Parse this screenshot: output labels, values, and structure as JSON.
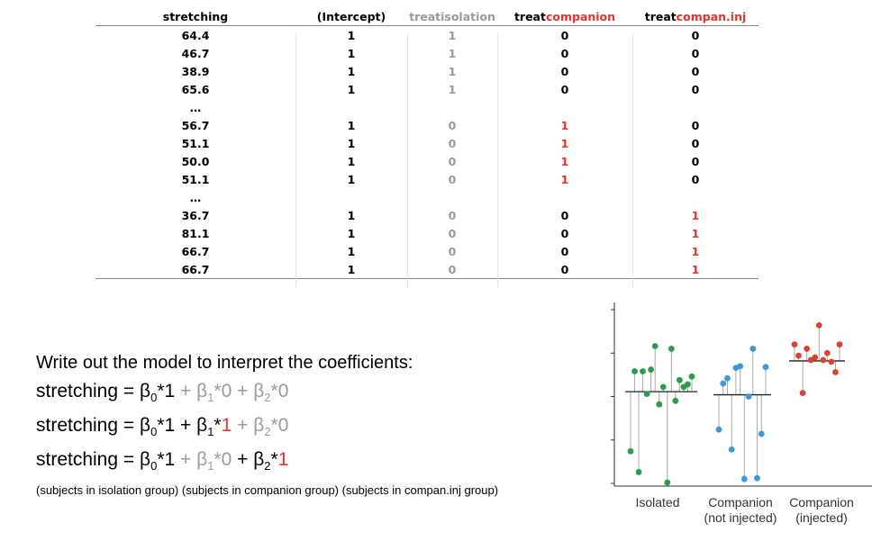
{
  "table": {
    "headers": [
      {
        "parts": [
          {
            "text": "stretching",
            "color": "black"
          }
        ]
      },
      {
        "parts": [
          {
            "text": "(Intercept)",
            "color": "black"
          }
        ]
      },
      {
        "parts": [
          {
            "text": "treatisolation",
            "color": "gray"
          }
        ]
      },
      {
        "parts": [
          {
            "text": "treat",
            "color": "black"
          },
          {
            "text": "companion",
            "color": "red"
          }
        ]
      },
      {
        "parts": [
          {
            "text": "treat",
            "color": "black"
          },
          {
            "text": "compan.inj",
            "color": "red"
          }
        ]
      }
    ],
    "rows": [
      [
        "64.4",
        "1",
        "1",
        "0",
        "0"
      ],
      [
        "46.7",
        "1",
        "1",
        "0",
        "0"
      ],
      [
        "38.9",
        "1",
        "1",
        "0",
        "0"
      ],
      [
        "65.6",
        "1",
        "1",
        "0",
        "0"
      ],
      [
        "…",
        "",
        "",
        "",
        ""
      ],
      [
        "56.7",
        "1",
        "0",
        "1",
        "0"
      ],
      [
        "51.1",
        "1",
        "0",
        "1",
        "0"
      ],
      [
        "50.0",
        "1",
        "0",
        "1",
        "0"
      ],
      [
        "51.1",
        "1",
        "0",
        "1",
        "0"
      ],
      [
        "…",
        "",
        "",
        "",
        ""
      ],
      [
        "36.7",
        "1",
        "0",
        "0",
        "1"
      ],
      [
        "81.1",
        "1",
        "0",
        "0",
        "1"
      ],
      [
        "66.7",
        "1",
        "0",
        "0",
        "1"
      ],
      [
        "66.7",
        "1",
        "0",
        "0",
        "1"
      ]
    ]
  },
  "model": {
    "intro": "Write out the model to interpret the coefficients:",
    "equations": [
      [
        {
          "text": "stretching = ",
          "c": "k"
        },
        {
          "text": "β",
          "c": "k"
        },
        {
          "text": "0",
          "c": "k",
          "sub": true
        },
        {
          "text": "*1",
          "c": "k"
        },
        {
          "text": " + β",
          "c": "g"
        },
        {
          "text": "1",
          "c": "g",
          "sub": true
        },
        {
          "text": "*0",
          "c": "g"
        },
        {
          "text": " + β",
          "c": "g"
        },
        {
          "text": "2",
          "c": "g",
          "sub": true
        },
        {
          "text": "*0",
          "c": "g"
        }
      ],
      [
        {
          "text": "stretching = ",
          "c": "k"
        },
        {
          "text": "β",
          "c": "k"
        },
        {
          "text": "0",
          "c": "k",
          "sub": true
        },
        {
          "text": "*1",
          "c": "k"
        },
        {
          "text": " + β",
          "c": "k"
        },
        {
          "text": "1",
          "c": "k",
          "sub": true
        },
        {
          "text": "*",
          "c": "k"
        },
        {
          "text": "1",
          "c": "r"
        },
        {
          "text": " + β",
          "c": "g"
        },
        {
          "text": "2",
          "c": "g",
          "sub": true
        },
        {
          "text": "*0",
          "c": "g"
        }
      ],
      [
        {
          "text": "stretching = ",
          "c": "k"
        },
        {
          "text": "β",
          "c": "k"
        },
        {
          "text": "0",
          "c": "k",
          "sub": true
        },
        {
          "text": "*1",
          "c": "k"
        },
        {
          "text": " + β",
          "c": "g"
        },
        {
          "text": "1",
          "c": "g",
          "sub": true
        },
        {
          "text": "*0",
          "c": "g"
        },
        {
          "text": " + β",
          "c": "k"
        },
        {
          "text": "2",
          "c": "k",
          "sub": true
        },
        {
          "text": "*",
          "c": "k"
        },
        {
          "text": "1",
          "c": "r"
        }
      ]
    ],
    "notes": "(subjects in isolation group) (subjects in companion group) (subjects in compan.inj group)"
  },
  "chart_data": {
    "type": "scatter",
    "categories": [
      "Isolated",
      "Companion\n(not injected)",
      "Companion\n(injected)"
    ],
    "colors": {
      "Isolated": "#2e9a4e",
      "Companion (not injected)": "#3a9ad9",
      "Companion (injected)": "#d9432f"
    },
    "ylim": [
      0,
      100
    ],
    "means": [
      52.8,
      51.0,
      70.5
    ],
    "series": [
      {
        "category": "Isolated",
        "values": [
          18.5,
          64.5,
          6.5,
          64.5,
          51.5,
          65.5,
          79.0,
          45.5,
          55.5,
          0.5,
          77.5,
          47.5,
          59.5,
          55.5,
          57.0,
          61.5
        ]
      },
      {
        "category": "Companion (not injected)",
        "values": [
          31.0,
          57.5,
          60.5,
          19.5,
          66.5,
          67.5,
          2.5,
          50.0,
          77.5,
          3.0,
          28.5,
          67.0
        ]
      },
      {
        "category": "Companion (injected)",
        "values": [
          80.0,
          73.5,
          52.0,
          77.5,
          71.0,
          72.5,
          91.0,
          71.0,
          75.0,
          70.0,
          64.0,
          80.0
        ]
      }
    ]
  }
}
